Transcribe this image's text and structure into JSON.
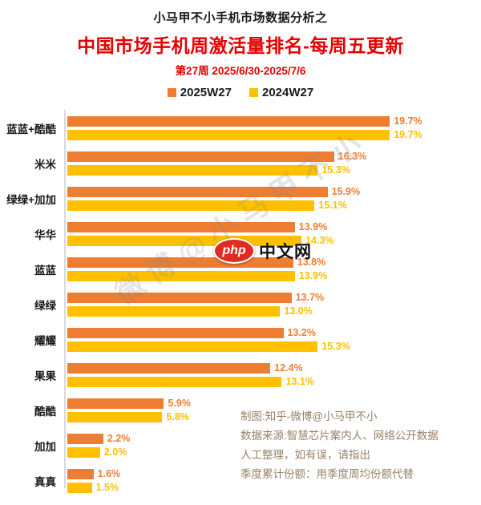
{
  "header": {
    "kicker": "小马甲不小手机市场数据分析之",
    "title": "中国市场手机周激活量排名-每周五更新",
    "subtitle": "第27周 2025/6/30-2025/7/6"
  },
  "legend": [
    {
      "label": "2025W27",
      "color": "#ED7D31"
    },
    {
      "label": "2024W27",
      "color": "#FFC000"
    }
  ],
  "chart_data": {
    "type": "bar",
    "orientation": "horizontal",
    "title": "中国市场手机周激活量排名-每周五更新",
    "categories": [
      "蓝蓝+酷酷",
      "米米",
      "绿绿+加加",
      "华华",
      "蓝蓝",
      "绿绿",
      "耀耀",
      "果果",
      "酷酷",
      "加加",
      "真真"
    ],
    "series": [
      {
        "name": "2025W27",
        "color": "#ED7D31",
        "values": [
          19.7,
          16.3,
          15.9,
          13.9,
          13.8,
          13.7,
          13.2,
          12.4,
          5.9,
          2.2,
          1.6
        ]
      },
      {
        "name": "2024W27",
        "color": "#FFC000",
        "values": [
          19.7,
          15.3,
          15.1,
          14.3,
          13.9,
          13.0,
          15.3,
          13.1,
          5.8,
          2.0,
          1.5
        ]
      }
    ],
    "value_suffix": "%",
    "xlim": [
      0,
      24
    ],
    "grid": false,
    "legend_position": "top",
    "axis_line_color": "#d9d9d9"
  },
  "watermark": {
    "text": "微博@小马甲不小"
  },
  "logo": {
    "badge": "php",
    "text": "中文网"
  },
  "notes": {
    "line1": "制图:知乎-微博@小马甲不小",
    "line2": "数据来源:智慧芯片案内人、网络公开数据",
    "line3": "人工整理，如有误，请指出",
    "line4": "季度累计份额：用季度周均份额代替"
  },
  "colors": {
    "title_red": "#e60000",
    "series_2025": "#ED7D31",
    "series_2024": "#FFC000",
    "note_text": "#97826a"
  }
}
